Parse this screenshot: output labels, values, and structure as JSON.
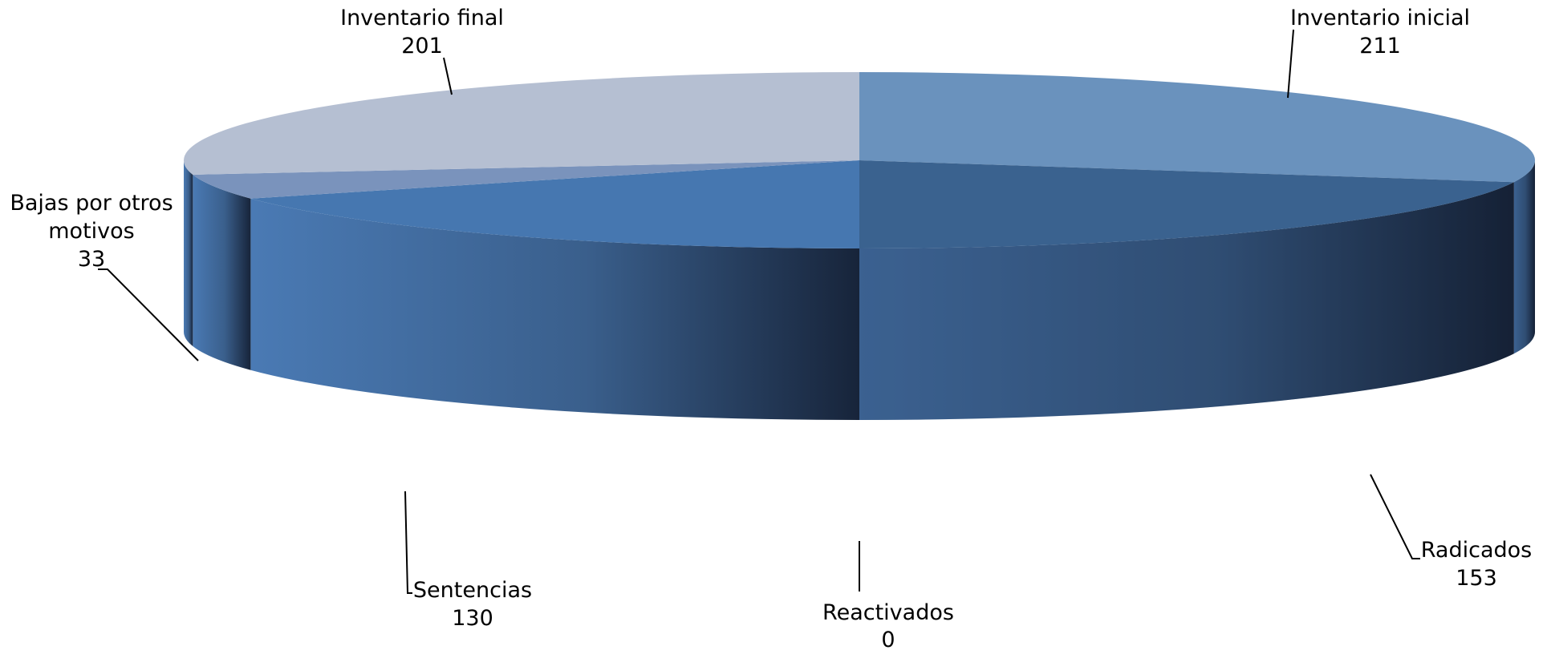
{
  "chart_data": {
    "type": "pie",
    "style": "3d",
    "title": "",
    "legend": "none",
    "slices": [
      {
        "label": "Inventario inicial",
        "value": 211,
        "color": "#3b6696"
      },
      {
        "label": "Radicados",
        "value": 153,
        "color": "#1d2f4a"
      },
      {
        "label": "Reactivados",
        "value": 0,
        "color": "#2f5382"
      },
      {
        "label": "Sentencias",
        "value": 130,
        "color": "#4472a8"
      },
      {
        "label": "Bajas por otros motivos",
        "value": 33,
        "color": "#7790ba"
      },
      {
        "label": "Inventario final",
        "value": 201,
        "color": "#b4bfd2"
      }
    ],
    "top_colors": [
      "#6a92bd",
      "#3a628f",
      "#3a628f",
      "#4677b0",
      "#7a93bc",
      "#b5bfd2"
    ]
  }
}
